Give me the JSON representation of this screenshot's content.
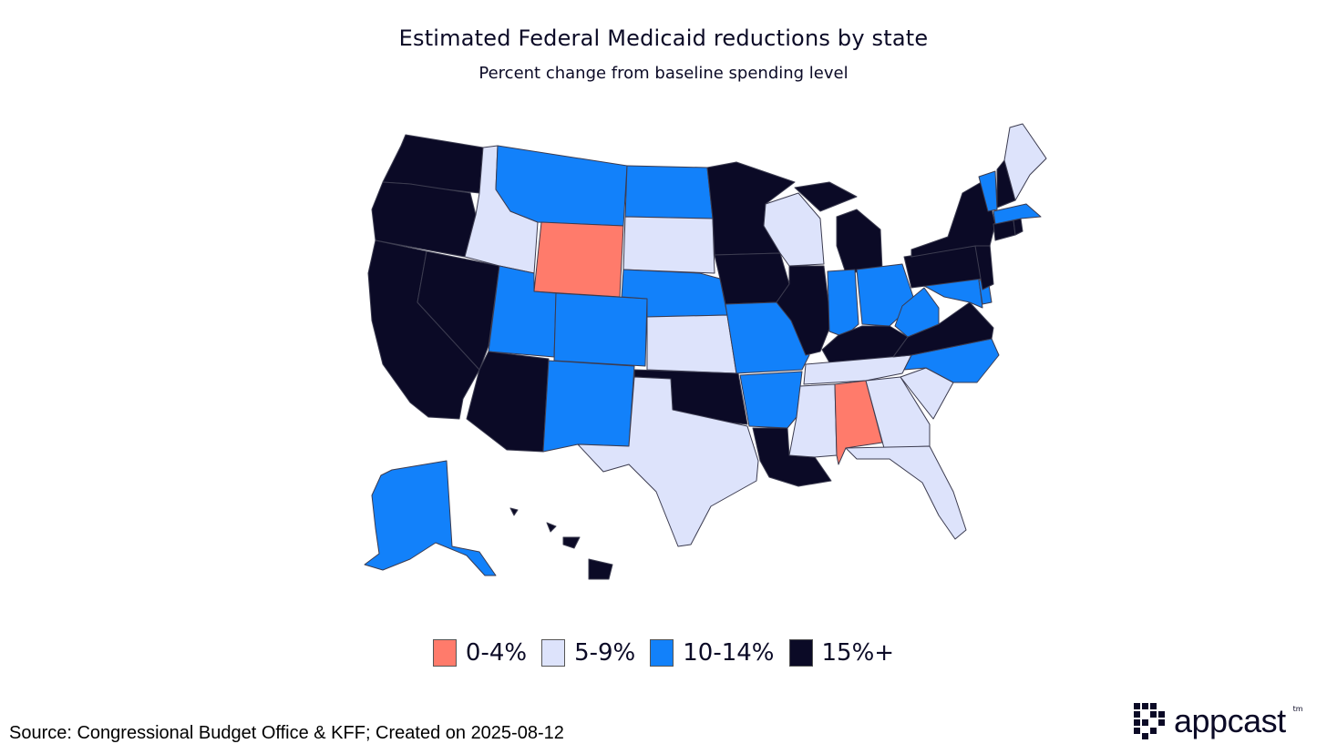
{
  "title": "Estimated Federal Medicaid reductions by state",
  "subtitle": "Percent change from baseline spending level",
  "legend": [
    {
      "label": "0-4%",
      "color": "#ff7b6b",
      "key": "a"
    },
    {
      "label": "5-9%",
      "color": "#dde3fb",
      "key": "b"
    },
    {
      "label": "10-14%",
      "color": "#1281fa",
      "key": "c"
    },
    {
      "label": "15%+",
      "color": "#0b0a26",
      "key": "d"
    }
  ],
  "source": "Source: Congressional Budget Office & KFF; Created on 2025-08-12",
  "logo": {
    "text": "appcast",
    "mark": "tm"
  },
  "states": {
    "WA": "d",
    "OR": "d",
    "CA": "d",
    "NV": "d",
    "ID": "b",
    "MT": "c",
    "WY": "a",
    "UT": "c",
    "AZ": "d",
    "CO": "c",
    "NM": "c",
    "ND": "c",
    "SD": "b",
    "NE": "c",
    "KS": "b",
    "OK": "d",
    "TX": "b",
    "MN": "d",
    "IA": "d",
    "MO": "c",
    "AR": "c",
    "LA": "d",
    "WI": "b",
    "IL": "d",
    "MI": "d",
    "IN": "c",
    "OH": "c",
    "KY": "d",
    "TN": "b",
    "MS": "b",
    "AL": "a",
    "GA": "b",
    "FL": "b",
    "SC": "b",
    "NC": "c",
    "VA": "d",
    "WV": "c",
    "MD": "c",
    "DE": "c",
    "PA": "d",
    "NJ": "d",
    "NY": "d",
    "CT": "d",
    "RI": "d",
    "MA": "c",
    "VT": "c",
    "NH": "d",
    "ME": "b",
    "AK": "c",
    "HI": "d"
  }
}
